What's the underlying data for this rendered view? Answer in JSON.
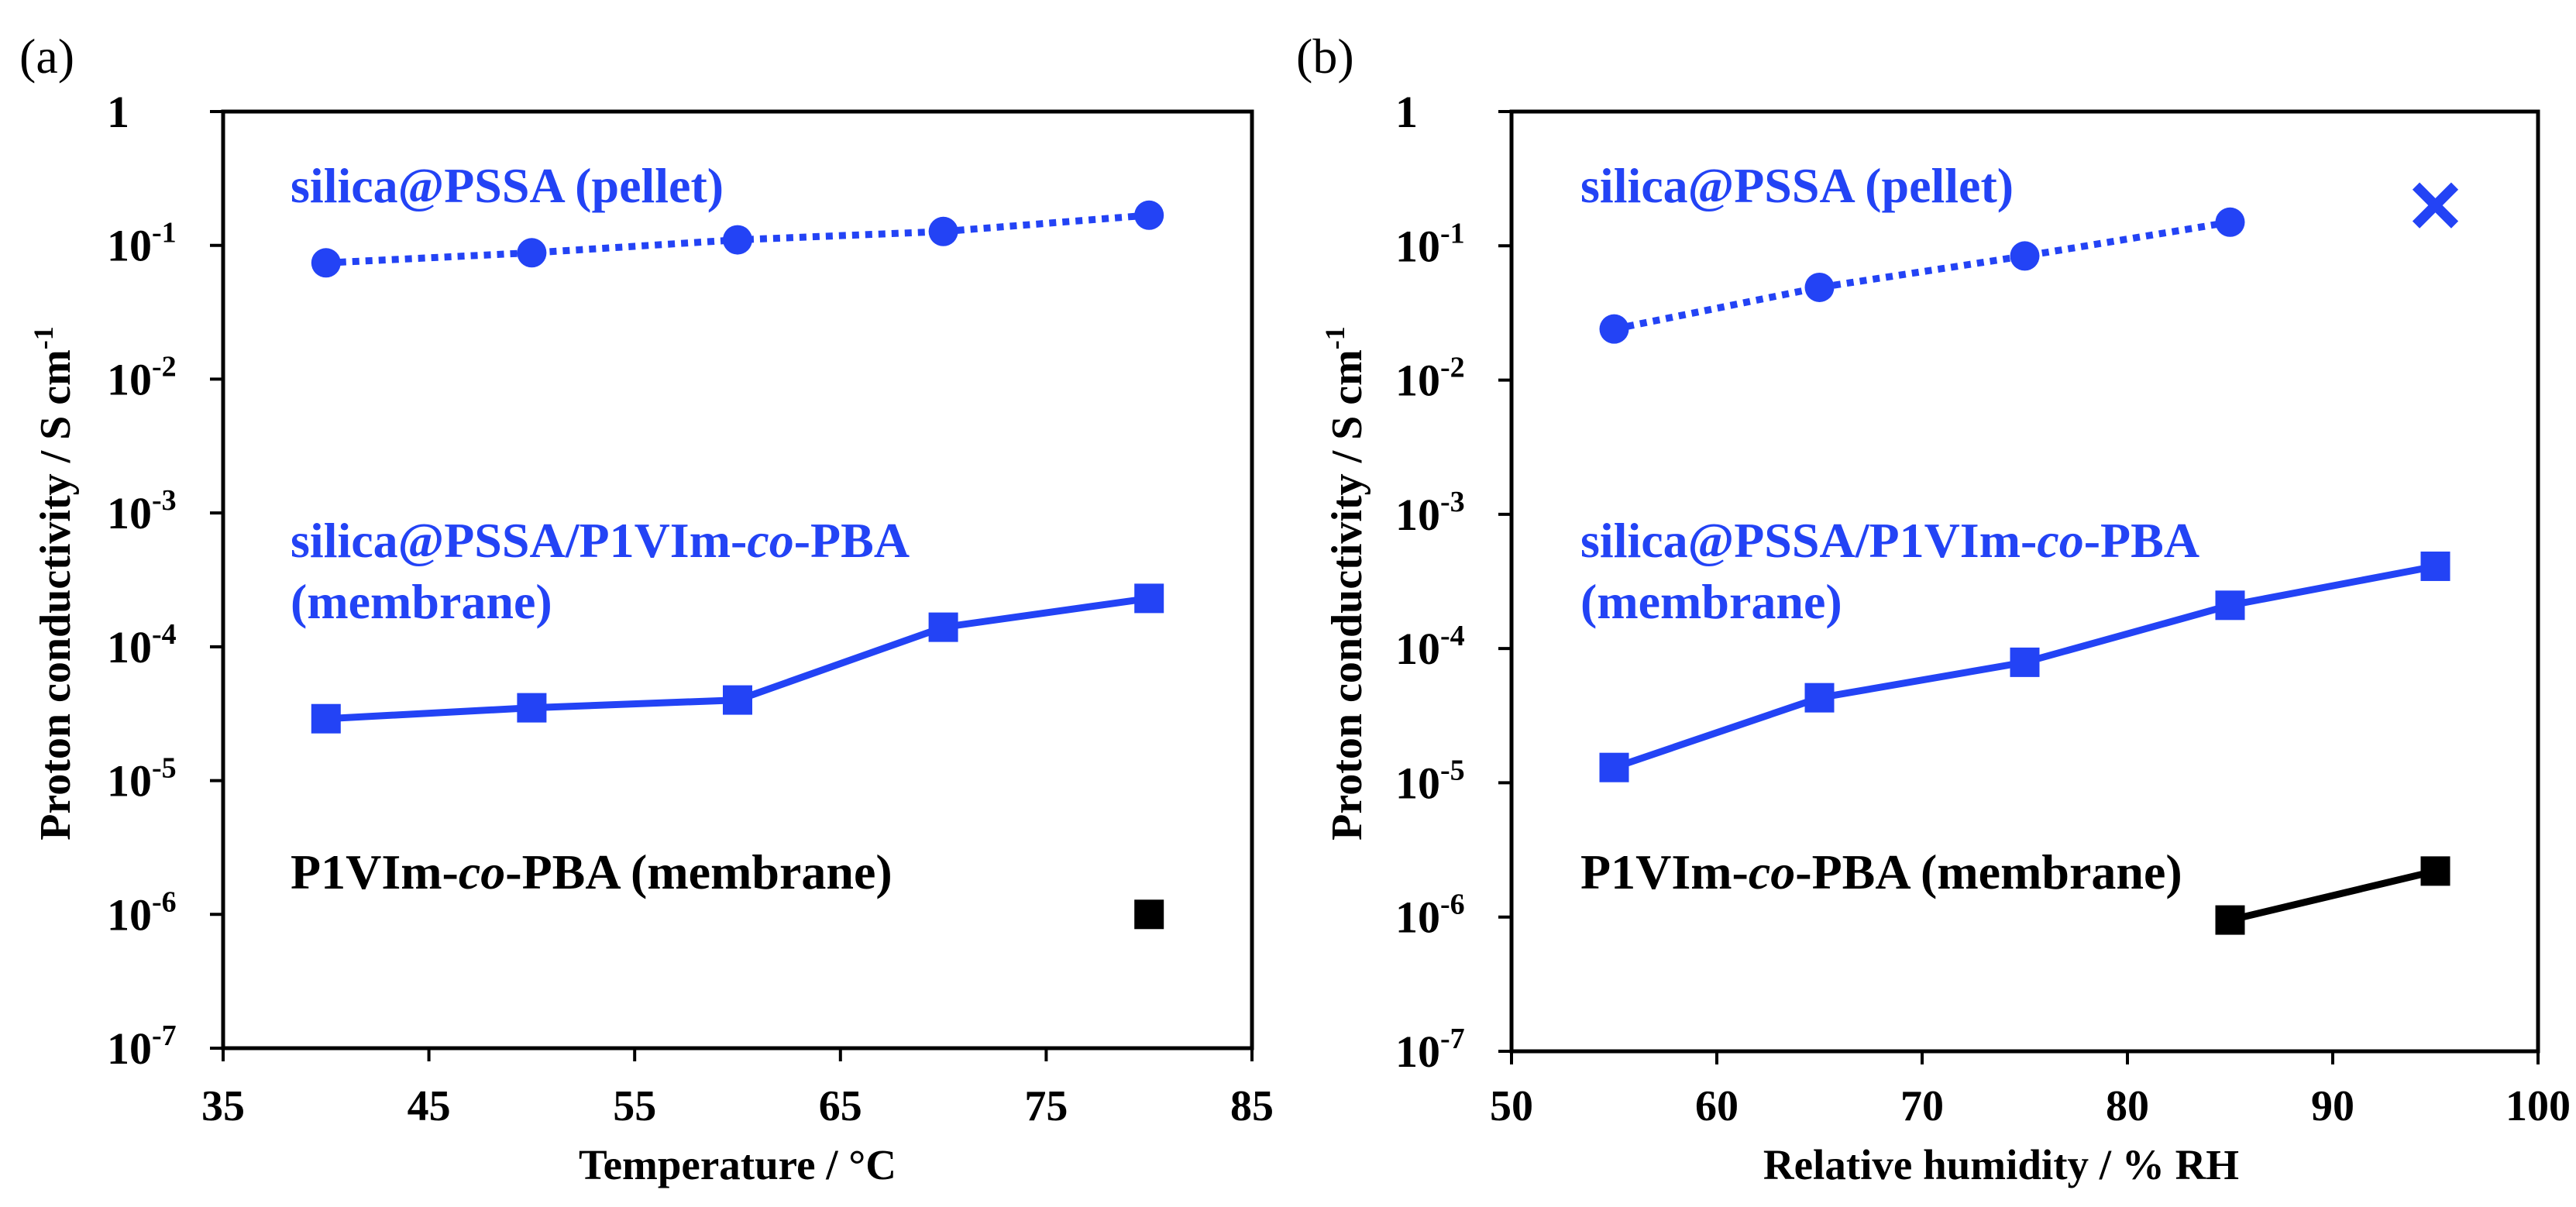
{
  "chart_data": [
    {
      "type": "line",
      "panel_label": "(a)",
      "xlabel": "Temperature / °C",
      "ylabel": {
        "text": "Proton conductivity / S cm",
        "superscript": "-1"
      },
      "xlim": [
        35,
        85
      ],
      "ylim": [
        1e-07,
        1
      ],
      "yscale": "log",
      "grid": false,
      "x_ticks": [
        35,
        45,
        55,
        65,
        75,
        85
      ],
      "y_ticks": [
        1,
        0.1,
        0.01,
        0.001,
        0.0001,
        1e-05,
        1e-06,
        1e-07
      ],
      "y_tick_labels": [
        {
          "base": "1",
          "exp": ""
        },
        {
          "base": "10",
          "exp": "-1"
        },
        {
          "base": "10",
          "exp": "-2"
        },
        {
          "base": "10",
          "exp": "-3"
        },
        {
          "base": "10",
          "exp": "-4"
        },
        {
          "base": "10",
          "exp": "-5"
        },
        {
          "base": "10",
          "exp": "-6"
        },
        {
          "base": "10",
          "exp": "-7"
        }
      ],
      "series": [
        {
          "color": "#2343f5",
          "x": [
            40,
            50,
            60,
            70,
            80
          ],
          "y": [
            0.074,
            0.088,
            0.11,
            0.127,
            0.168
          ],
          "annotation": [
            [
              {
                "text": "silica@PSSA (pellet)"
              }
            ]
          ]
        },
        {
          "color": "#2343f5",
          "x": [
            40,
            50,
            60,
            70,
            80
          ],
          "y": [
            2.9e-05,
            3.5e-05,
            4e-05,
            0.00014,
            0.00023
          ],
          "annotation": [
            [
              {
                "text": "silica@PSSA/P1VIm-"
              },
              {
                "text": "co",
                "italic": true
              },
              {
                "text": "-PBA"
              }
            ],
            [
              {
                "text": "(membrane)"
              }
            ]
          ]
        },
        {
          "color": "#000000",
          "x": [
            80
          ],
          "y": [
            1e-06
          ],
          "annotation": [
            [
              {
                "text": "P1VIm-"
              },
              {
                "text": "co",
                "italic": true
              },
              {
                "text": "-PBA (membrane)"
              }
            ]
          ]
        }
      ]
    },
    {
      "type": "line",
      "panel_label": "(b)",
      "xlabel": "Relative humidity / % RH",
      "ylabel": {
        "text": "Proton conductivity / S cm",
        "superscript": "-1"
      },
      "xlim": [
        50,
        100
      ],
      "ylim": [
        1e-07,
        1
      ],
      "yscale": "log",
      "grid": false,
      "x_ticks": [
        50,
        60,
        70,
        80,
        90,
        100
      ],
      "y_ticks": [
        1,
        0.1,
        0.01,
        0.001,
        0.0001,
        1e-05,
        1e-06,
        1e-07
      ],
      "y_tick_labels": [
        {
          "base": "1",
          "exp": ""
        },
        {
          "base": "10",
          "exp": "-1"
        },
        {
          "base": "10",
          "exp": "-2"
        },
        {
          "base": "10",
          "exp": "-3"
        },
        {
          "base": "10",
          "exp": "-4"
        },
        {
          "base": "10",
          "exp": "-5"
        },
        {
          "base": "10",
          "exp": "-6"
        },
        {
          "base": "10",
          "exp": "-7"
        }
      ],
      "series": [
        {
          "color": "#2343f5",
          "x": [
            55,
            65,
            75,
            85
          ],
          "y": [
            0.024,
            0.049,
            0.084,
            0.15
          ],
          "extra_points": [
            {
              "x": 95,
              "y": 0.2
            }
          ],
          "annotation": [
            [
              {
                "text": "silica@PSSA (pellet)"
              }
            ]
          ]
        },
        {
          "color": "#2343f5",
          "x": [
            55,
            65,
            75,
            85,
            95
          ],
          "y": [
            1.3e-05,
            4.3e-05,
            7.9e-05,
            0.00021,
            0.00041
          ],
          "annotation": [
            [
              {
                "text": "silica@PSSA/P1VIm-"
              },
              {
                "text": "co",
                "italic": true
              },
              {
                "text": "-PBA"
              }
            ],
            [
              {
                "text": "(membrane)"
              }
            ]
          ]
        },
        {
          "color": "#000000",
          "x": [
            85,
            95
          ],
          "y": [
            9.5e-07,
            2.2e-06
          ],
          "annotation": [
            [
              {
                "text": "P1VIm-"
              },
              {
                "text": "co",
                "italic": true
              },
              {
                "text": "-PBA (membrane)"
              }
            ]
          ]
        }
      ]
    }
  ]
}
